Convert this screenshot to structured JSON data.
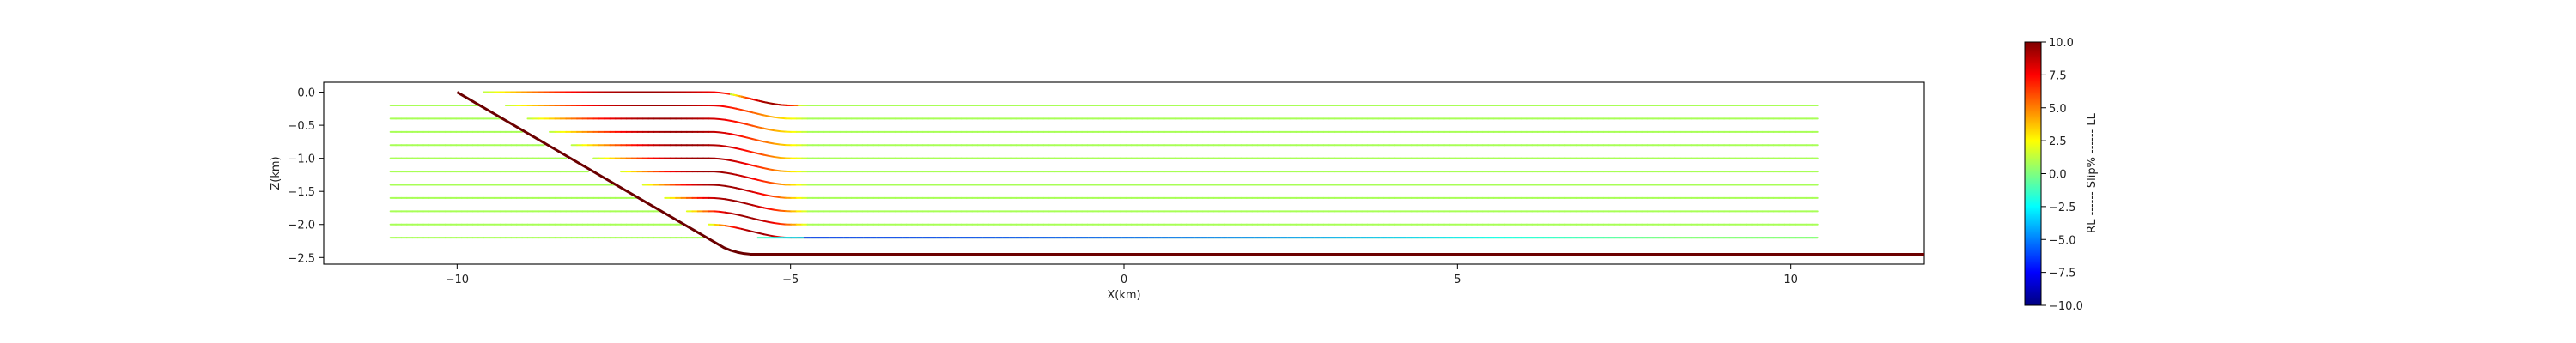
{
  "chart_data": {
    "type": "line",
    "xlabel": "X(km)",
    "ylabel": "Z(km)",
    "xlim": [
      -12,
      12
    ],
    "ylim": [
      -2.6,
      0.15
    ],
    "xticks": [
      -10,
      -5,
      0,
      5,
      10
    ],
    "xtick_labels": [
      "−10",
      "−5",
      "0",
      "5",
      "10"
    ],
    "yticks": [
      0.0,
      -0.5,
      -1.0,
      -1.5,
      -2.0,
      -2.5
    ],
    "ytick_labels": [
      "0.0",
      "−0.5",
      "−1.0",
      "−1.5",
      "−2.0",
      "−2.5"
    ],
    "grid": false,
    "fault": {
      "color": "#6b0000",
      "x": [
        -10.0,
        -6.0,
        -5.9,
        -5.8,
        -5.7,
        -5.6,
        12.0
      ],
      "y": [
        0.0,
        -2.35,
        -2.39,
        -2.42,
        -2.44,
        -2.45,
        -2.45
      ]
    },
    "horizon_levels": [
      -0.2,
      -0.4,
      -0.6,
      -0.8,
      -1.0,
      -1.2,
      -1.4,
      -1.6,
      -1.8,
      -2.0,
      -2.2
    ],
    "horizon_x_start": -11.0,
    "horizon_x_end": 10.4,
    "fold_x": [
      -6.2,
      -5.0
    ],
    "fold_uplift_km": 0.2,
    "slip_percent_far": 0.8,
    "slip_percent_fold_max": 9.5,
    "basal_slip_percent": -6.5,
    "colorbar": {
      "label": "RL ------ Slip% ------ LL",
      "min": -10.0,
      "max": 10.0,
      "ticks": [
        10.0,
        7.5,
        5.0,
        2.5,
        0.0,
        -2.5,
        -5.0,
        -7.5,
        -10.0
      ],
      "tick_labels": [
        "10.0",
        "7.5",
        "5.0",
        "2.5",
        "0.0",
        "−2.5",
        "−5.0",
        "−7.5",
        "−10.0"
      ],
      "colormap": "jet",
      "colormap_stops": [
        "#00007f",
        "#0000ff",
        "#007fff",
        "#00ffff",
        "#7fff7f",
        "#ffff00",
        "#ff7f00",
        "#ff0000",
        "#7f0000"
      ]
    }
  }
}
